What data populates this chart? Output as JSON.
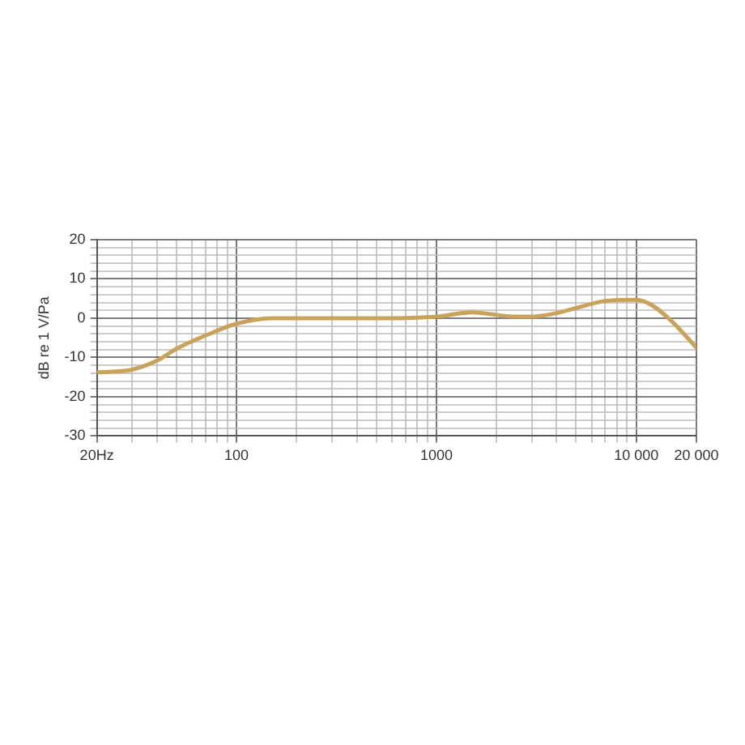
{
  "chart_data": {
    "type": "line",
    "ylabel": "dB re 1 V/Pa",
    "log": "x",
    "grid": true,
    "legend": false,
    "marker": "none",
    "line_style": "solid",
    "xlim": [
      20,
      20000
    ],
    "ylim": [
      -30,
      20
    ],
    "xticks": [
      {
        "value": 20,
        "label": "20Hz"
      },
      {
        "value": 30,
        "label": null
      },
      {
        "value": 40,
        "label": null
      },
      {
        "value": 50,
        "label": null
      },
      {
        "value": 60,
        "label": null
      },
      {
        "value": 70,
        "label": null
      },
      {
        "value": 80,
        "label": null
      },
      {
        "value": 90,
        "label": null
      },
      100,
      {
        "value": 200,
        "label": null
      },
      {
        "value": 300,
        "label": null
      },
      {
        "value": 400,
        "label": null
      },
      {
        "value": 500,
        "label": null
      },
      {
        "value": 600,
        "label": null
      },
      {
        "value": 700,
        "label": null
      },
      {
        "value": 800,
        "label": null
      },
      {
        "value": 900,
        "label": null
      },
      1000,
      {
        "value": 2000,
        "label": null
      },
      {
        "value": 3000,
        "label": null
      },
      {
        "value": 4000,
        "label": null
      },
      {
        "value": 5000,
        "label": null
      },
      {
        "value": 6000,
        "label": null
      },
      {
        "value": 7000,
        "label": null
      },
      {
        "value": 8000,
        "label": null
      },
      {
        "value": 9000,
        "label": null
      },
      {
        "value": 10000,
        "label": "10 000"
      },
      {
        "value": 20000,
        "label": "20 000"
      }
    ],
    "yticks": [
      -30,
      {
        "value": -28,
        "label": null
      },
      {
        "value": -26,
        "label": null
      },
      {
        "value": -24,
        "label": null
      },
      {
        "value": -22,
        "label": null
      },
      -20,
      {
        "value": -18,
        "label": null
      },
      {
        "value": -16,
        "label": null
      },
      {
        "value": -14,
        "label": null
      },
      {
        "value": -12,
        "label": null
      },
      -10,
      {
        "value": -8,
        "label": null
      },
      {
        "value": -6,
        "label": null
      },
      {
        "value": -4,
        "label": null
      },
      {
        "value": -2,
        "label": null
      },
      0,
      {
        "value": 2,
        "label": null
      },
      {
        "value": 4,
        "label": null
      },
      {
        "value": 6,
        "label": null
      },
      {
        "value": 8,
        "label": null
      },
      10,
      {
        "value": 12,
        "label": null
      },
      {
        "value": 14,
        "label": null
      },
      {
        "value": 16,
        "label": null
      },
      {
        "value": 18,
        "label": null
      },
      20
    ],
    "x": [
      20,
      30,
      40,
      50,
      70,
      100,
      150,
      200,
      500,
      1000,
      1500,
      2500,
      3000,
      4000,
      5000,
      7000,
      10000,
      12000,
      15000,
      20000
    ],
    "series": [
      {
        "color": "#c9a35a",
        "values": [
          -13.8,
          -13.1,
          -10.8,
          -7.8,
          -4.4,
          -1.4,
          0,
          0,
          0,
          0.4,
          1.5,
          0.4,
          0.4,
          1.3,
          2.6,
          4.4,
          4.7,
          3.3,
          -0.7,
          -7.5
        ]
      }
    ]
  }
}
